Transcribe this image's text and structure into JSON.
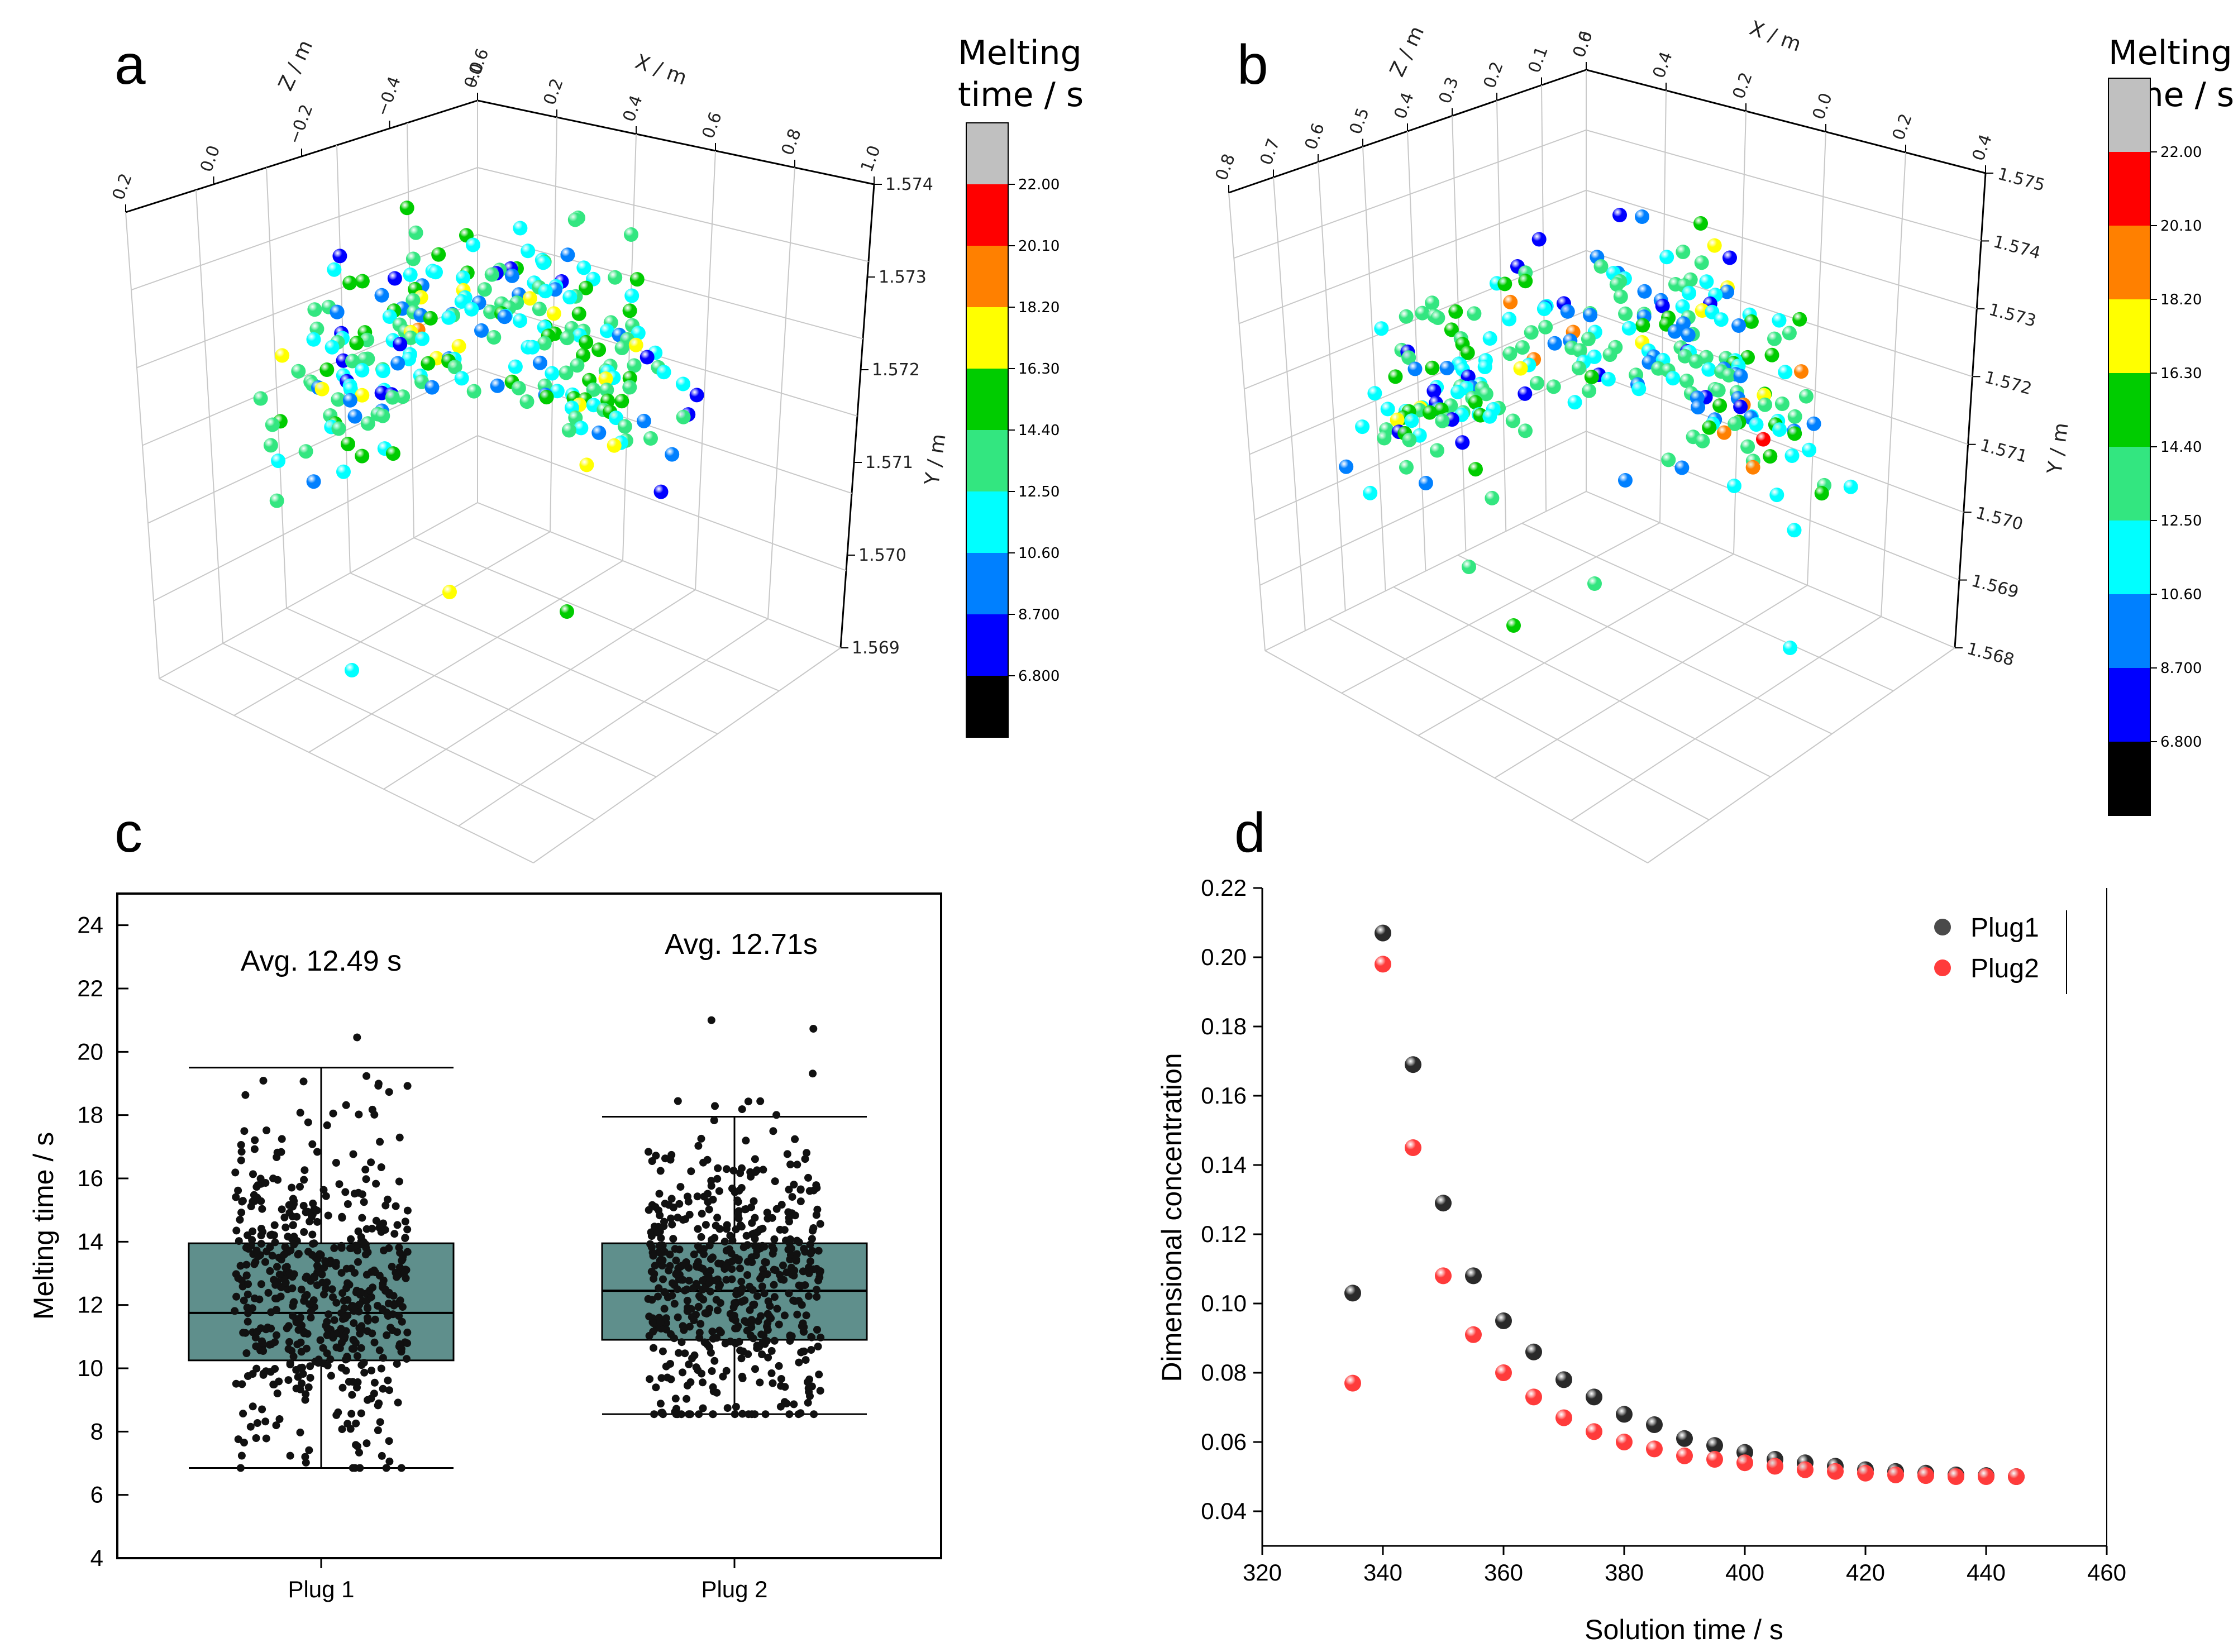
{
  "panels": {
    "a": "a",
    "b": "b",
    "c": "c",
    "d": "d"
  },
  "colorbar": {
    "title_line1": "Melting",
    "title_line2": "time / s",
    "ticks": [
      "22.00",
      "20.10",
      "18.20",
      "16.30",
      "14.40",
      "12.50",
      "10.60",
      "8.700",
      "6.800"
    ],
    "colors": [
      "#c0c0c0",
      "#ff0000",
      "#ff8000",
      "#ffff00",
      "#00cc00",
      "#33e680",
      "#00ffff",
      "#0080ff",
      "#0000ff",
      "#000000"
    ]
  },
  "chart_data": [
    {
      "id": "a",
      "type": "scatter",
      "title": "",
      "axis_titles": {
        "x": "X / m",
        "y": "Y / m",
        "z": "Z / m"
      },
      "x_ticks": [
        "0.0",
        "0.2",
        "0.4",
        "0.6",
        "0.8",
        "1.0"
      ],
      "z_ticks": [
        "0.2",
        "0.0",
        "−0.2",
        "−0.4",
        "−0.6"
      ],
      "y_ticks": [
        "1.574",
        "1.573",
        "1.572",
        "1.571",
        "1.570",
        "1.569"
      ],
      "colorbar_range": [
        6.8,
        22.0
      ],
      "description": "3D scatter of approximately 250 melting particles colored by melting time"
    },
    {
      "id": "b",
      "type": "scatter",
      "title": "",
      "axis_titles": {
        "x": "X / m",
        "y": "Y / m",
        "z": "Z / m"
      },
      "x_ticks": [
        "0.6",
        "0.4",
        "0.2",
        "0.0",
        "0.2",
        "0.4"
      ],
      "z_ticks": [
        "0.8",
        "0.7",
        "0.6",
        "0.5",
        "0.4",
        "0.3",
        "0.2",
        "0.1",
        "0.0"
      ],
      "y_ticks": [
        "1.575",
        "1.574",
        "1.573",
        "1.572",
        "1.571",
        "1.570",
        "1.569",
        "1.568"
      ],
      "colorbar_range": [
        6.8,
        22.0
      ],
      "description": "3D scatter of approximately 250 melting particles colored by melting time"
    },
    {
      "id": "c",
      "type": "box",
      "ylabel": "Melting time / s",
      "xlabel": "",
      "ylim": [
        4,
        25
      ],
      "y_ticks": [
        "4",
        "6",
        "8",
        "10",
        "12",
        "14",
        "16",
        "18",
        "20",
        "22",
        "24"
      ],
      "categories": [
        "Plug 1",
        "Plug 2"
      ],
      "boxes": [
        {
          "name": "Plug 1",
          "min": 6.85,
          "q1": 10.25,
          "median": 11.75,
          "q3": 13.95,
          "max": 19.5,
          "mean": 12.49,
          "annotation": "Avg. 12.49 s"
        },
        {
          "name": "Plug 2",
          "min": 8.55,
          "q1": 10.9,
          "median": 12.45,
          "q3": 13.95,
          "max": 17.95,
          "mean": 12.71,
          "annotation": "Avg. 12.71s"
        }
      ],
      "box_color": "#5f8f8c"
    },
    {
      "id": "d",
      "type": "scatter",
      "xlabel": "Solution time / s",
      "ylabel": "Dimensional concentration",
      "xlim": [
        320,
        460
      ],
      "ylim": [
        0.03,
        0.22
      ],
      "x_ticks": [
        "320",
        "340",
        "360",
        "380",
        "400",
        "420",
        "440",
        "460"
      ],
      "y_ticks": [
        "0.04",
        "0.06",
        "0.08",
        "0.10",
        "0.12",
        "0.14",
        "0.16",
        "0.18",
        "0.20",
        "0.22"
      ],
      "x": [
        335,
        340,
        345,
        350,
        355,
        360,
        365,
        370,
        375,
        380,
        385,
        390,
        395,
        400,
        405,
        410,
        415,
        420,
        425,
        430,
        435,
        440,
        445
      ],
      "series": [
        {
          "name": "Plug1",
          "color": "#4a4a4a",
          "values": [
            0.103,
            0.207,
            0.169,
            0.129,
            0.108,
            0.095,
            0.086,
            0.078,
            0.073,
            0.068,
            0.065,
            0.061,
            0.059,
            0.057,
            0.055,
            0.054,
            0.053,
            0.052,
            0.0515,
            0.051,
            0.0505,
            0.0503,
            0.05
          ]
        },
        {
          "name": "Plug2",
          "color": "#ff3b3b",
          "values": [
            0.077,
            0.198,
            0.145,
            0.108,
            0.091,
            0.08,
            0.073,
            0.067,
            0.063,
            0.06,
            0.058,
            0.056,
            0.055,
            0.054,
            0.053,
            0.052,
            0.0515,
            0.051,
            0.0505,
            0.0503,
            0.05,
            0.05,
            0.05
          ]
        }
      ],
      "legend_position": "top-right"
    }
  ]
}
